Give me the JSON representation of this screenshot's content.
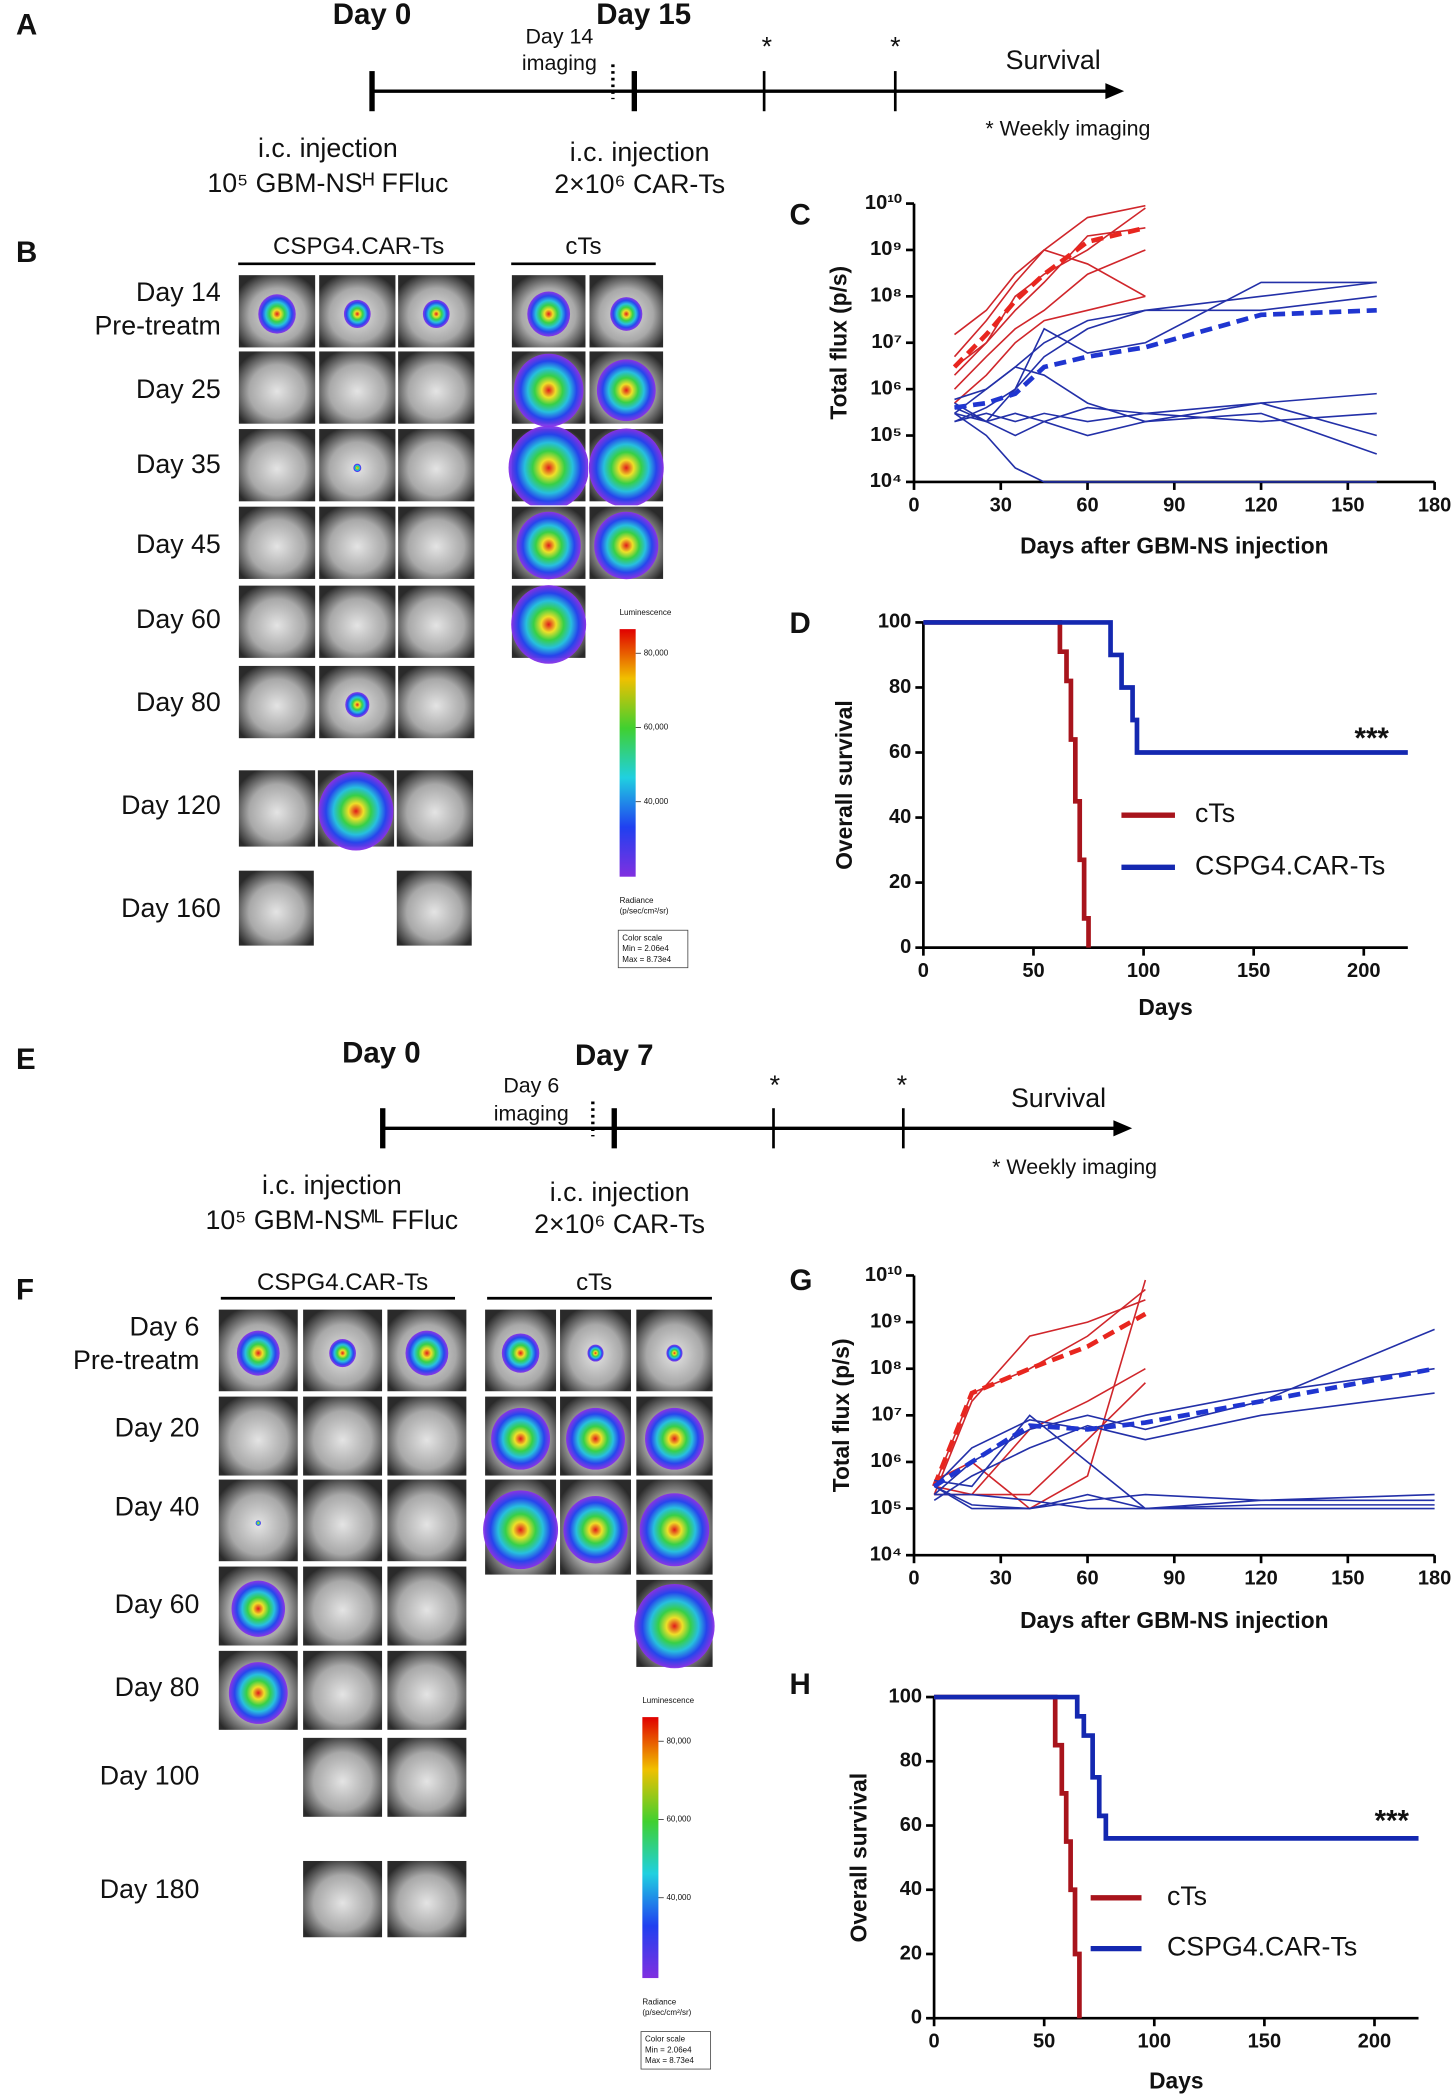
{
  "panels": {
    "a": {
      "label": "A",
      "day_start": "Day 0",
      "imaging": [
        "Day 14",
        "imaging"
      ],
      "day_treat": "Day 15",
      "stars": [
        "*",
        "*"
      ],
      "end": "Survival",
      "note": "* Weekly imaging",
      "injection1": [
        "i.c. injection",
        "10⁵ GBM-NSᴴ FFluc"
      ],
      "injection2": [
        "i.c. injection",
        "2×10⁶ CAR-Ts"
      ]
    },
    "b": {
      "label": "B",
      "groups": [
        "CSPG4.CAR-Ts",
        "cTs"
      ],
      "rows": [
        [
          "Day 14",
          "Pre-treatm"
        ],
        [
          "Day 25"
        ],
        [
          "Day 35"
        ],
        [
          "Day 45"
        ],
        [
          "Day 60"
        ],
        [
          "Day 80"
        ],
        [
          "Day 120"
        ],
        [
          "Day 160"
        ]
      ],
      "scale": {
        "title": "Luminescence",
        "ticks": [
          "80,000",
          "60,000",
          "40,000"
        ],
        "unit": [
          "Radiance",
          "(p/sec/cm²/sr)"
        ],
        "box": [
          "Color scale",
          "Min = 2.06e4",
          "Max = 8.73e4"
        ]
      }
    },
    "e": {
      "label": "E",
      "day_start": "Day 0",
      "imaging": [
        "Day 6",
        "imaging"
      ],
      "day_treat": "Day 7",
      "stars": [
        "*",
        "*"
      ],
      "end": "Survival",
      "note": "* Weekly imaging",
      "injection1": [
        "i.c. injection",
        "10⁵ GBM-NSᴹᴸ FFluc"
      ],
      "injection2": [
        "i.c. injection",
        "2×10⁶ CAR-Ts"
      ]
    },
    "f": {
      "label": "F",
      "groups": [
        "CSPG4.CAR-Ts",
        "cTs"
      ],
      "rows": [
        [
          "Day 6",
          "Pre-treatm"
        ],
        [
          "Day 20"
        ],
        [
          "Day 40"
        ],
        [
          "Day 60"
        ],
        [
          "Day 80"
        ],
        [
          "Day 100"
        ],
        [
          "Day 180"
        ]
      ],
      "scale": {
        "title": "Luminescence",
        "ticks": [
          "80,000",
          "60,000",
          "40,000"
        ],
        "unit": [
          "Radiance",
          "(p/sec/cm²/sr)"
        ],
        "box": [
          "Color scale",
          "Min = 2.06e4",
          "Max = 8.73e4"
        ]
      }
    }
  },
  "chart_data": [
    {
      "type": "line",
      "label": "C",
      "x_label": "Days after GBM-NS injection",
      "y_label": "Total flux (p/s)",
      "log_y": true,
      "xlim": [
        0,
        180
      ],
      "xticks": [
        0,
        30,
        60,
        90,
        120,
        150,
        180
      ],
      "ylim": [
        10000,
        10000000000
      ],
      "yticks": [
        {
          "value": 10000,
          "label": "10⁴"
        },
        {
          "value": 100000,
          "label": "10⁵"
        },
        {
          "value": 1000000,
          "label": "10⁶"
        },
        {
          "value": 10000000,
          "label": "10⁷"
        },
        {
          "value": 100000000,
          "label": "10⁸"
        },
        {
          "value": 1000000000,
          "label": "10⁹"
        },
        {
          "value": 10000000000,
          "label": "10¹⁰"
        }
      ],
      "series": [
        {
          "color": "#d0262b",
          "x": [
            14,
            25,
            35,
            45,
            60,
            80
          ],
          "values": [
            2000000,
            10000000,
            100000000,
            300000000,
            1000000000,
            8000000000
          ]
        },
        {
          "color": "#d0262b",
          "x": [
            14,
            25,
            35,
            45,
            60,
            80
          ],
          "values": [
            5000000,
            30000000,
            200000000,
            1000000000,
            5000000000,
            9000000000
          ]
        },
        {
          "color": "#d0262b",
          "x": [
            14,
            25,
            35,
            45,
            60,
            80
          ],
          "values": [
            1000000,
            5000000,
            20000000,
            50000000,
            300000000,
            1000000000
          ]
        },
        {
          "color": "#d0262b",
          "x": [
            14,
            25,
            35,
            45,
            60,
            80
          ],
          "values": [
            3000000,
            10000000,
            50000000,
            200000000,
            2000000000,
            3000000000
          ]
        },
        {
          "color": "#d0262b",
          "x": [
            14,
            25,
            35,
            45,
            60,
            80
          ],
          "values": [
            15000000,
            50000000,
            300000000,
            1000000000,
            500000000,
            100000000
          ]
        },
        {
          "color": "#d0262b",
          "x": [
            14,
            25,
            35,
            45,
            60,
            80
          ],
          "values": [
            500000,
            2000000,
            10000000,
            30000000,
            50000000,
            100000000
          ]
        },
        {
          "color": "#e8261f",
          "dashed": true,
          "x": [
            14,
            25,
            35,
            45,
            60,
            80
          ],
          "values": [
            3000000,
            15000000,
            80000000,
            300000000,
            1500000000,
            3000000000
          ]
        },
        {
          "color": "#2330a8",
          "x": [
            14,
            25,
            35,
            45,
            60,
            80,
            120,
            160
          ],
          "values": [
            300000,
            1000000,
            3000000,
            10000000,
            30000000,
            50000000,
            100000000,
            200000000
          ]
        },
        {
          "color": "#2330a8",
          "x": [
            14,
            25,
            35,
            45,
            60,
            80,
            120,
            160
          ],
          "values": [
            500000,
            200000,
            1000000,
            5000000,
            20000000,
            50000000,
            50000000,
            100000000
          ]
        },
        {
          "color": "#2330a8",
          "x": [
            14,
            25,
            35,
            45,
            60,
            80,
            120,
            160
          ],
          "values": [
            200000,
            300000,
            200000,
            300000,
            200000,
            300000,
            500000,
            800000
          ]
        },
        {
          "color": "#2330a8",
          "x": [
            14,
            25,
            35,
            45,
            60,
            80,
            120,
            160
          ],
          "values": [
            400000,
            200000,
            100000,
            200000,
            100000,
            200000,
            500000,
            100000
          ]
        },
        {
          "color": "#2330a8",
          "x": [
            14,
            25,
            35,
            45,
            60,
            80,
            120,
            160
          ],
          "values": [
            300000,
            100000,
            20000,
            10000,
            10000,
            10000,
            10000,
            10000
          ]
        },
        {
          "color": "#2330a8",
          "x": [
            14,
            25,
            35,
            45,
            60,
            80,
            120,
            160
          ],
          "values": [
            600000,
            1000000,
            3000000,
            2000000,
            500000,
            200000,
            300000,
            40000
          ]
        },
        {
          "color": "#2330a8",
          "x": [
            14,
            25,
            35,
            45,
            60,
            80,
            120,
            160
          ],
          "values": [
            200000,
            400000,
            1000000,
            20000000,
            6000000,
            10000000,
            200000000,
            200000000
          ]
        },
        {
          "color": "#2330a8",
          "x": [
            14,
            25,
            35,
            45,
            60,
            80,
            120,
            160
          ],
          "values": [
            300000,
            200000,
            300000,
            200000,
            400000,
            300000,
            200000,
            300000
          ]
        },
        {
          "color": "#1f35d0",
          "dashed": true,
          "x": [
            14,
            25,
            35,
            45,
            60,
            80,
            120,
            160
          ],
          "values": [
            400000,
            500000,
            800000,
            3000000,
            5000000,
            8000000,
            40000000,
            50000000
          ]
        }
      ]
    },
    {
      "type": "step",
      "label": "D",
      "x_label": "Days",
      "y_label": "Overall survival",
      "annotation": "***",
      "xlim": [
        0,
        220
      ],
      "xticks": [
        0,
        50,
        100,
        150,
        200
      ],
      "ylim": [
        0,
        100
      ],
      "yticks": [
        0,
        20,
        40,
        60,
        80,
        100
      ],
      "series": [
        {
          "name": "cTs",
          "color": "#a8141c",
          "x": [
            0,
            62,
            65,
            67,
            69,
            71,
            73,
            75
          ],
          "values": [
            100,
            91,
            82,
            64,
            45,
            27,
            9,
            0
          ]
        },
        {
          "name": "CSPG4.CAR-Ts",
          "color": "#1428b0",
          "x": [
            0,
            85,
            90,
            95,
            97,
            220
          ],
          "values": [
            100,
            90,
            80,
            70,
            60,
            60
          ]
        }
      ]
    },
    {
      "type": "line",
      "label": "G",
      "x_label": "Days after GBM-NS injection",
      "y_label": "Total flux (p/s)",
      "log_y": true,
      "xlim": [
        0,
        180
      ],
      "xticks": [
        0,
        30,
        60,
        90,
        120,
        150,
        180
      ],
      "ylim": [
        10000,
        10000000000
      ],
      "yticks": [
        {
          "value": 10000,
          "label": "10⁴"
        },
        {
          "value": 100000,
          "label": "10⁵"
        },
        {
          "value": 1000000,
          "label": "10⁶"
        },
        {
          "value": 10000000,
          "label": "10⁷"
        },
        {
          "value": 100000000,
          "label": "10⁸"
        },
        {
          "value": 1000000000,
          "label": "10⁹"
        },
        {
          "value": 10000000000,
          "label": "10¹⁰"
        }
      ],
      "series": [
        {
          "color": "#d0262b",
          "x": [
            7,
            20,
            40,
            60,
            80
          ],
          "values": [
            300000,
            30000000,
            100000000,
            500000000,
            5000000000
          ]
        },
        {
          "color": "#d0262b",
          "x": [
            7,
            20,
            40,
            60,
            80
          ],
          "values": [
            200000,
            20000000,
            500000000,
            1000000000,
            3000000000
          ]
        },
        {
          "color": "#d0262b",
          "x": [
            7,
            20,
            40,
            60,
            80
          ],
          "values": [
            400000,
            1000000,
            100000,
            500000,
            8000000000
          ]
        },
        {
          "color": "#d0262b",
          "x": [
            7,
            20,
            40,
            60,
            80
          ],
          "values": [
            300000,
            200000,
            5000000,
            20000000,
            100000000
          ]
        },
        {
          "color": "#d0262b",
          "x": [
            7,
            20,
            40,
            60,
            80
          ],
          "values": [
            200000,
            200000,
            200000,
            3000000,
            50000000
          ]
        },
        {
          "color": "#e8261f",
          "dashed": true,
          "x": [
            7,
            20,
            40,
            60,
            80
          ],
          "values": [
            300000,
            30000000,
            100000000,
            300000000,
            1500000000
          ]
        },
        {
          "color": "#2330a8",
          "x": [
            7,
            20,
            40,
            60,
            80,
            120,
            180
          ],
          "values": [
            200000,
            1000000,
            5000000,
            10000000,
            5000000,
            20000000,
            700000000
          ]
        },
        {
          "color": "#2330a8",
          "x": [
            7,
            20,
            40,
            60,
            80,
            120,
            180
          ],
          "values": [
            300000,
            2000000,
            8000000,
            5000000,
            10000000,
            30000000,
            100000000
          ]
        },
        {
          "color": "#2330a8",
          "x": [
            7,
            20,
            40,
            60,
            80,
            120,
            180
          ],
          "values": [
            150000,
            500000,
            2000000,
            6000000,
            3000000,
            10000000,
            30000000
          ]
        },
        {
          "color": "#2330a8",
          "x": [
            7,
            20,
            40,
            60,
            80,
            120,
            180
          ],
          "values": [
            300000,
            100000,
            100000,
            150000,
            200000,
            150000,
            200000
          ]
        },
        {
          "color": "#2330a8",
          "x": [
            7,
            20,
            40,
            60,
            80,
            120,
            180
          ],
          "values": [
            200000,
            200000,
            150000,
            100000,
            100000,
            100000,
            100000
          ]
        },
        {
          "color": "#2330a8",
          "x": [
            7,
            20,
            40,
            60,
            80,
            120,
            180
          ],
          "values": [
            400000,
            300000,
            10000000,
            1000000,
            100000,
            120000,
            120000
          ]
        },
        {
          "color": "#2330a8",
          "x": [
            7,
            20,
            40,
            60,
            80,
            120,
            180
          ],
          "values": [
            300000,
            120000,
            100000,
            200000,
            100000,
            150000,
            150000
          ]
        },
        {
          "color": "#1f35d0",
          "dashed": true,
          "x": [
            7,
            20,
            40,
            60,
            80,
            120,
            180
          ],
          "values": [
            300000,
            1000000,
            6000000,
            5000000,
            7000000,
            20000000,
            100000000
          ]
        }
      ]
    },
    {
      "type": "step",
      "label": "H",
      "x_label": "Days",
      "y_label": "Overall survival",
      "annotation": "***",
      "xlim": [
        0,
        220
      ],
      "xticks": [
        0,
        50,
        100,
        150,
        200
      ],
      "ylim": [
        0,
        100
      ],
      "yticks": [
        0,
        20,
        40,
        60,
        80,
        100
      ],
      "series": [
        {
          "name": "cTs",
          "color": "#a8141c",
          "x": [
            0,
            55,
            58,
            60,
            62,
            64,
            66
          ],
          "values": [
            100,
            85,
            70,
            55,
            40,
            20,
            0
          ]
        },
        {
          "name": "CSPG4.CAR-Ts",
          "color": "#1428b0",
          "x": [
            0,
            65,
            68,
            72,
            75,
            78,
            220
          ],
          "values": [
            100,
            94,
            88,
            75,
            63,
            56,
            56
          ]
        }
      ]
    }
  ]
}
